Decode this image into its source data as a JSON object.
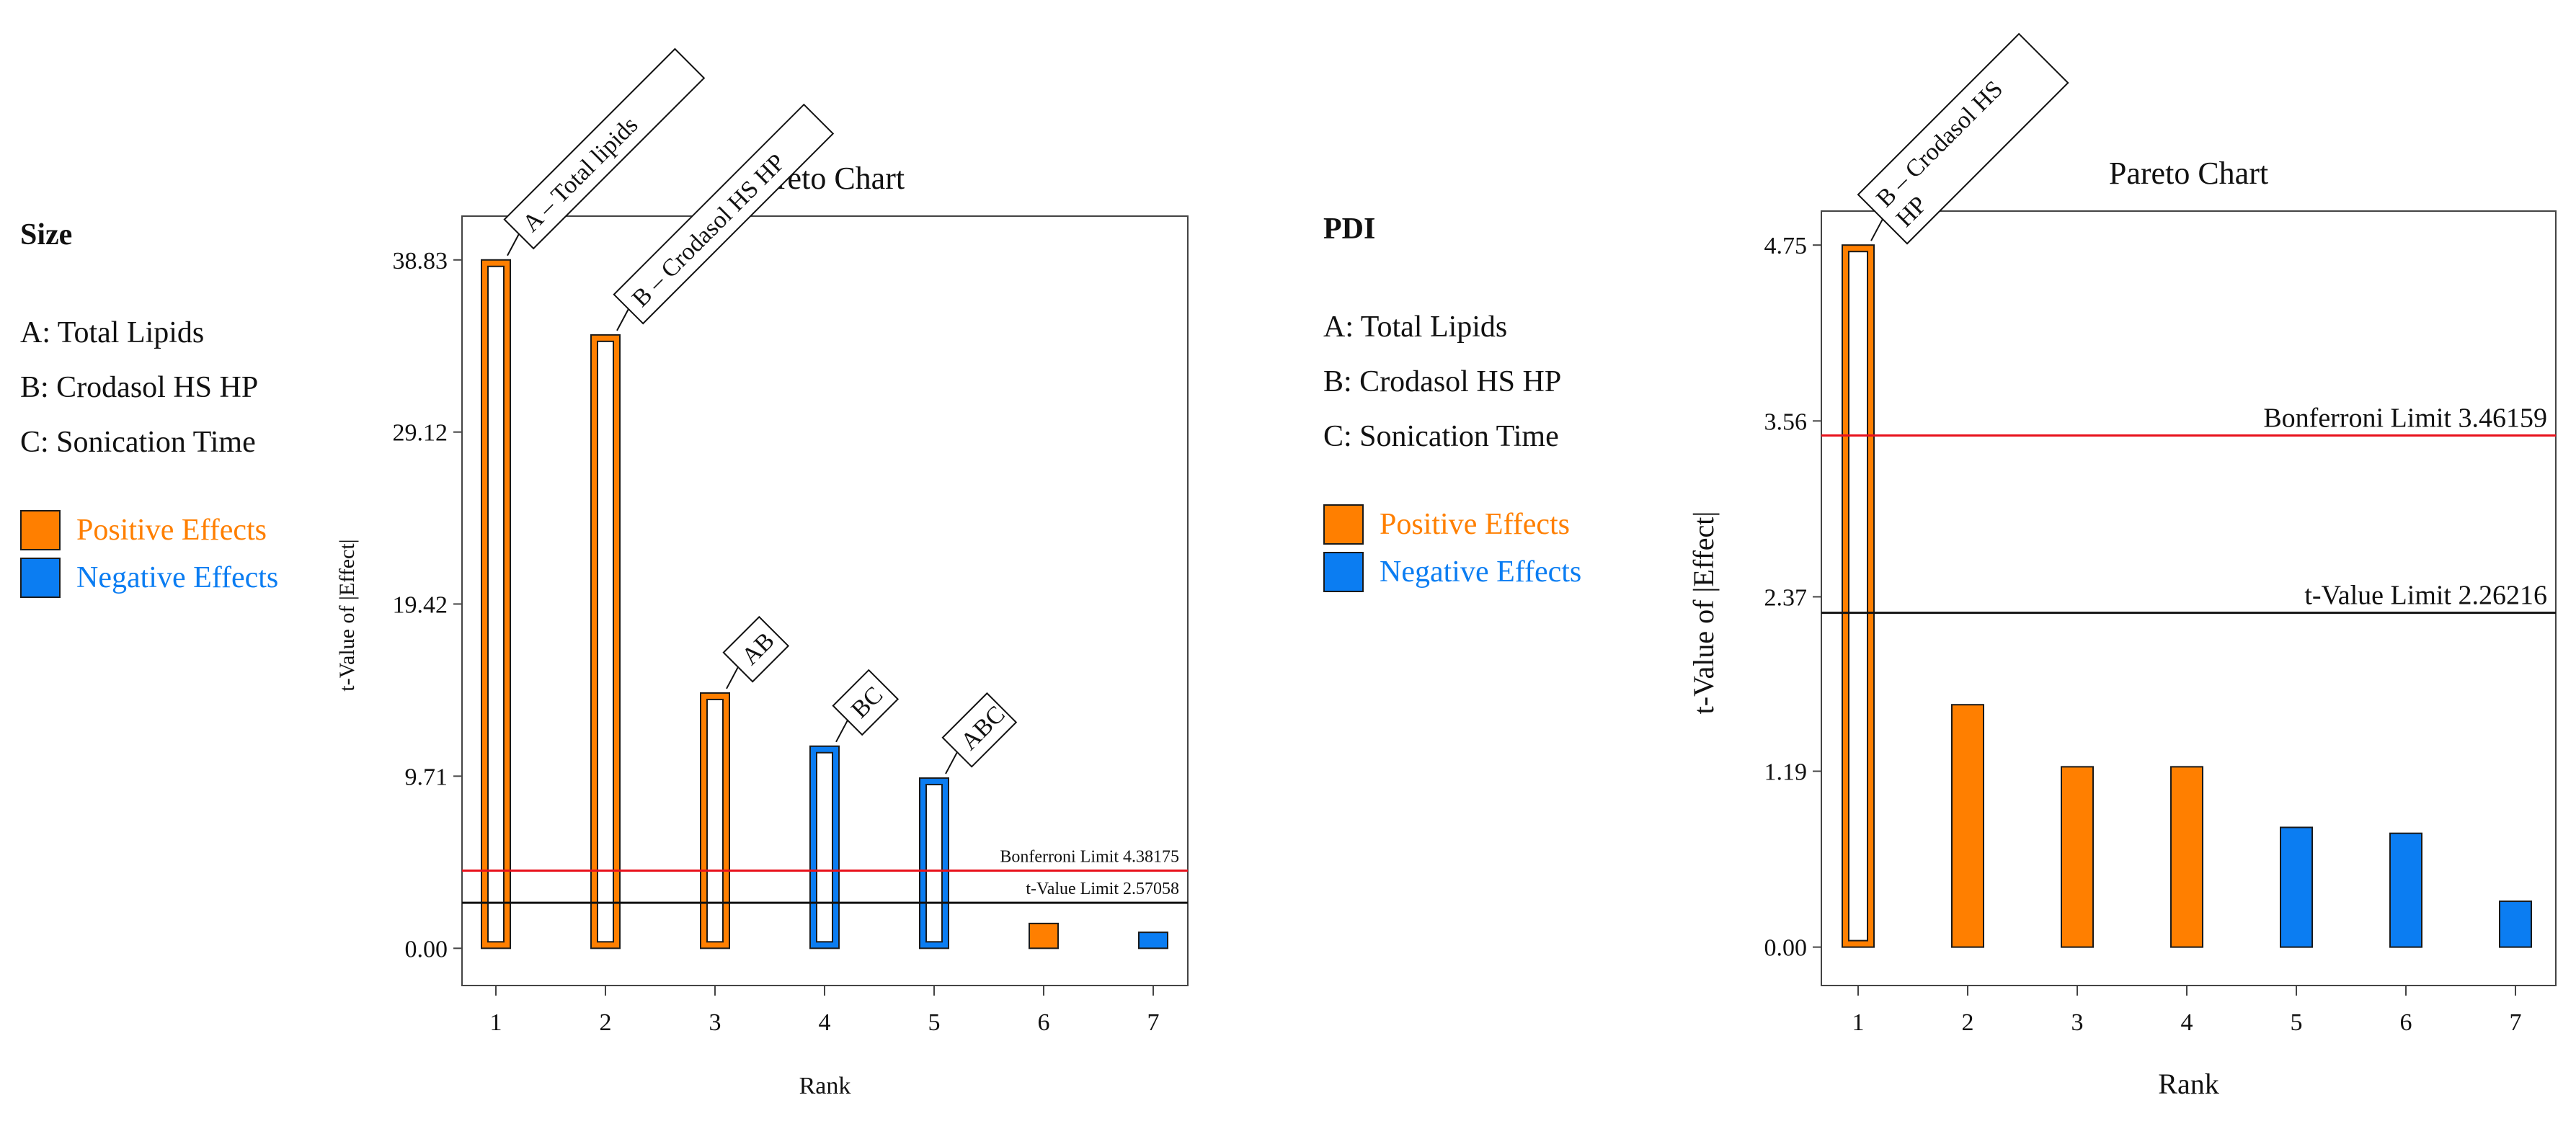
{
  "colors": {
    "positive": "#ff7f00",
    "negative": "#0b7df2",
    "bonferroni": "#e8111b",
    "tlimit": "#111111"
  },
  "left_panel": {
    "title": "Size",
    "factors": [
      "A: Total Lipids",
      "B: Crodasol HS HP",
      "C: Sonication Time"
    ],
    "legend": {
      "positive": "Positive Effects",
      "negative": "Negative Effects"
    }
  },
  "right_panel": {
    "title": "PDI",
    "factors": [
      "A: Total Lipids",
      "B: Crodasol HS HP",
      "C: Sonication Time"
    ],
    "legend": {
      "positive": "Positive Effects",
      "negative": "Negative Effects"
    }
  },
  "chart_data": [
    {
      "type": "bar",
      "title": "Pareto Chart",
      "xlabel": "Rank",
      "ylabel": "t-Value of |Effect|",
      "categories": [
        "1",
        "2",
        "3",
        "4",
        "5",
        "6",
        "7"
      ],
      "values": [
        38.83,
        34.6,
        14.4,
        11.4,
        9.6,
        1.4,
        0.9
      ],
      "effects": [
        "positive",
        "positive",
        "positive",
        "negative",
        "negative",
        "positive",
        "negative"
      ],
      "hollow": [
        true,
        true,
        true,
        true,
        true,
        false,
        false
      ],
      "bar_labels": [
        "A – Total lipids",
        "B – Crodasol HS HP",
        "AB",
        "BC",
        "ABC",
        "",
        ""
      ],
      "yticks": [
        "0.00",
        "9.71",
        "19.42",
        "29.12",
        "38.83"
      ],
      "ylim": [
        -2.1,
        41.3
      ],
      "limits": [
        {
          "name": "Bonferroni Limit 4.38175",
          "value": 4.38175,
          "kind": "bonferroni"
        },
        {
          "name": "t-Value Limit 2.57058",
          "value": 2.57058,
          "kind": "tlimit"
        }
      ]
    },
    {
      "type": "bar",
      "title": "Pareto Chart",
      "xlabel": "Rank",
      "ylabel": "t-Value of |Effect|",
      "categories": [
        "1",
        "2",
        "3",
        "4",
        "5",
        "6",
        "7"
      ],
      "values": [
        4.75,
        1.64,
        1.22,
        1.22,
        0.81,
        0.77,
        0.31
      ],
      "effects": [
        "positive",
        "positive",
        "positive",
        "positive",
        "negative",
        "negative",
        "negative"
      ],
      "hollow": [
        true,
        false,
        false,
        false,
        false,
        false,
        false
      ],
      "bar_labels": [
        "B – Crodasol HS\nHP",
        "",
        "",
        "",
        "",
        "",
        ""
      ],
      "yticks": [
        "0.00",
        "1.19",
        "2.37",
        "3.56",
        "4.75"
      ],
      "ylim": [
        -0.26,
        4.98
      ],
      "limits": [
        {
          "name": "Bonferroni Limit 3.46159",
          "value": 3.46159,
          "kind": "bonferroni"
        },
        {
          "name": "t-Value Limit 2.26216",
          "value": 2.26216,
          "kind": "tlimit"
        }
      ]
    }
  ]
}
